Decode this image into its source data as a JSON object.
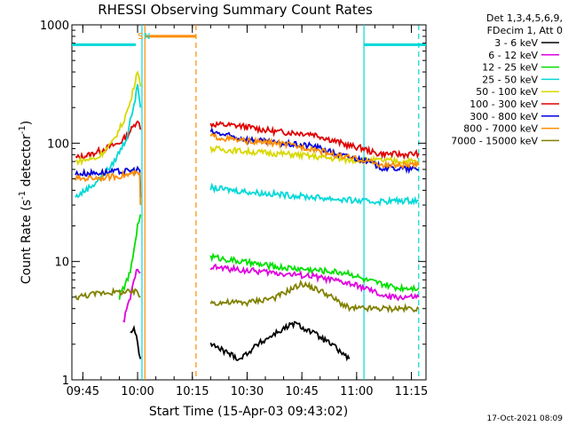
{
  "chart_data": {
    "type": "line",
    "title": "RHESSI Observing Summary Count Rates",
    "xlabel": "Start Time (15-Apr-03 09:43:02)",
    "ylabel_main": "Count Rate (s",
    "ylabel_sup1": "-1",
    "ylabel_mid": " detector",
    "ylabel_sup2": "-1",
    "ylabel_end": ")",
    "y_scale": "log",
    "ylim": [
      1,
      1000
    ],
    "xlim_minutes": [
      -1,
      96
    ],
    "x_ticks": [
      {
        "m": 2,
        "label": "09:45"
      },
      {
        "m": 17,
        "label": "10:00"
      },
      {
        "m": 32,
        "label": "10:15"
      },
      {
        "m": 47,
        "label": "10:30"
      },
      {
        "m": 62,
        "label": "10:45"
      },
      {
        "m": 77,
        "label": "11:00"
      },
      {
        "m": 92,
        "label": "11:15"
      }
    ],
    "y_ticks": [
      {
        "v": 1,
        "label": "1"
      },
      {
        "v": 10,
        "label": "10"
      },
      {
        "v": 100,
        "label": "100"
      },
      {
        "v": 1000,
        "label": "1000"
      }
    ],
    "legend_header": [
      "Det 1,3,4,5,6,9,",
      "FDecim 1, Att 0"
    ],
    "legend_placement": "right",
    "legend": [
      {
        "name": "3 - 6 keV",
        "color": "#000000"
      },
      {
        "name": "6 - 12 keV",
        "color": "#e000e0"
      },
      {
        "name": "12 - 25 keV",
        "color": "#00e000"
      },
      {
        "name": "25 - 50 keV",
        "color": "#00d8d8"
      },
      {
        "name": "50 - 100 keV",
        "color": "#d8d800"
      },
      {
        "name": "100 - 300 keV",
        "color": "#e00000"
      },
      {
        "name": "300 - 800 keV",
        "color": "#0000e0"
      },
      {
        "name": "800 - 7000 keV",
        "color": "#ff8c00"
      },
      {
        "name": "7000 - 15000 keV",
        "color": "#808000"
      }
    ],
    "flag_labels": [
      {
        "text": "S",
        "m": 16.5,
        "color": "#ff8c00"
      },
      {
        "text": "N",
        "m": 18.2,
        "color": "#00d8d8"
      }
    ],
    "saa_bar": {
      "start": 19.0,
      "end": 33.0,
      "value": 800,
      "color": "#ff8c00"
    },
    "night_bars": [
      {
        "start": -1,
        "end": 16.5,
        "value": 680,
        "color": "#00d8d8"
      },
      {
        "start": 79,
        "end": 96,
        "value": 680,
        "color": "#00d8d8"
      }
    ],
    "vlines": [
      {
        "m": 18.2,
        "color": "#00d8d8",
        "style": "solid"
      },
      {
        "m": 19.0,
        "color": "#ff8c00",
        "style": "solid"
      },
      {
        "m": 33.0,
        "color": "#ff8c00",
        "style": "dashed"
      },
      {
        "m": 79.0,
        "color": "#00d8d8",
        "style": "solid"
      },
      {
        "m": 94.0,
        "color": "#00d8d8",
        "style": "dashed"
      }
    ],
    "series": [
      {
        "name": "100 - 300 keV",
        "color": "#e00000",
        "segments": [
          [
            [
              0,
              75
            ],
            [
              4,
              80
            ],
            [
              8,
              90
            ],
            [
              12,
              100
            ],
            [
              14,
              115
            ],
            [
              16,
              140
            ],
            [
              17,
              160
            ],
            [
              17.8,
              130
            ]
          ],
          [
            [
              37,
              145
            ],
            [
              45,
              140
            ],
            [
              55,
              125
            ],
            [
              65,
              120
            ],
            [
              75,
              95
            ],
            [
              79,
              90
            ],
            [
              82,
              82
            ],
            [
              90,
              80
            ],
            [
              94,
              82
            ]
          ]
        ]
      },
      {
        "name": "50 - 100 keV",
        "color": "#d8d800",
        "segments": [
          [
            [
              0,
              70
            ],
            [
              6,
              75
            ],
            [
              10,
              100
            ],
            [
              13,
              150
            ],
            [
              15,
              220
            ],
            [
              17,
              420
            ],
            [
              17.8,
              300
            ]
          ],
          [
            [
              37,
              90
            ],
            [
              47,
              85
            ],
            [
              60,
              80
            ],
            [
              75,
              72
            ],
            [
              79,
              72
            ],
            [
              94,
              70
            ]
          ]
        ]
      },
      {
        "name": "25 - 50 keV",
        "color": "#00d8d8",
        "segments": [
          [
            [
              0,
              35
            ],
            [
              5,
              45
            ],
            [
              10,
              65
            ],
            [
              14,
              110
            ],
            [
              17,
              300
            ],
            [
              17.8,
              200
            ]
          ],
          [
            [
              37,
              42
            ],
            [
              50,
              38
            ],
            [
              60,
              36
            ],
            [
              70,
              34
            ],
            [
              80,
              32
            ],
            [
              94,
              33
            ]
          ]
        ]
      },
      {
        "name": "300 - 800 keV",
        "color": "#0000e0",
        "segments": [
          [
            [
              0,
              55
            ],
            [
              14,
              58
            ],
            [
              17,
              60
            ],
            [
              17.6,
              60
            ],
            [
              17.8,
              35
            ]
          ],
          [
            [
              37,
              125
            ],
            [
              45,
              110
            ],
            [
              55,
              100
            ],
            [
              65,
              95
            ],
            [
              72,
              80
            ],
            [
              79,
              72
            ],
            [
              84,
              62
            ],
            [
              94,
              60
            ]
          ]
        ]
      },
      {
        "name": "800 - 7000 keV",
        "color": "#ff8c00",
        "segments": [
          [
            [
              0,
              50
            ],
            [
              10,
              52
            ],
            [
              16,
              55
            ],
            [
              17.6,
              55
            ],
            [
              17.8,
              30
            ]
          ],
          [
            [
              37,
              115
            ],
            [
              45,
              105
            ],
            [
              55,
              100
            ],
            [
              65,
              90
            ],
            [
              72,
              78
            ],
            [
              79,
              72
            ],
            [
              84,
              65
            ],
            [
              94,
              65
            ]
          ]
        ]
      },
      {
        "name": "12 - 25 keV",
        "color": "#00e000",
        "segments": [
          [
            [
              12,
              5
            ],
            [
              15,
              8
            ],
            [
              17,
              20
            ],
            [
              17.8,
              25
            ]
          ],
          [
            [
              37,
              11
            ],
            [
              45,
              10
            ],
            [
              55,
              9
            ],
            [
              65,
              8.5
            ],
            [
              75,
              8
            ],
            [
              79,
              7
            ],
            [
              88,
              6
            ],
            [
              94,
              6
            ]
          ]
        ]
      },
      {
        "name": "6 - 12 keV",
        "color": "#e000e0",
        "segments": [
          [
            [
              13,
              3
            ],
            [
              15,
              5
            ],
            [
              17,
              9
            ],
            [
              17.8,
              8
            ]
          ],
          [
            [
              37,
              9
            ],
            [
              45,
              8.5
            ],
            [
              55,
              8
            ],
            [
              65,
              7.5
            ],
            [
              75,
              6.5
            ],
            [
              79,
              6
            ],
            [
              85,
              5
            ],
            [
              94,
              5
            ]
          ]
        ]
      },
      {
        "name": "7000 - 15000 keV",
        "color": "#808000",
        "segments": [
          [
            [
              0,
              5
            ],
            [
              8,
              5.5
            ],
            [
              17,
              5.5
            ],
            [
              17.8,
              5
            ]
          ],
          [
            [
              37,
              4.5
            ],
            [
              47,
              4.5
            ],
            [
              55,
              5
            ],
            [
              62,
              6.5
            ],
            [
              68,
              5.5
            ],
            [
              75,
              4
            ],
            [
              79,
              4
            ],
            [
              94,
              4
            ]
          ]
        ]
      },
      {
        "name": "3 - 6 keV",
        "color": "#000000",
        "segments": [
          [
            [
              15,
              2.5
            ],
            [
              16,
              2.8
            ],
            [
              17,
              2
            ],
            [
              17.8,
              1.5
            ]
          ],
          [
            [
              37,
              2
            ],
            [
              45,
              1.5
            ],
            [
              50,
              2
            ],
            [
              55,
              2.5
            ],
            [
              60,
              3
            ],
            [
              65,
              2.5
            ],
            [
              70,
              2
            ],
            [
              75,
              1.5
            ]
          ]
        ]
      }
    ]
  },
  "footer_date": "17-Oct-2021 08:09"
}
